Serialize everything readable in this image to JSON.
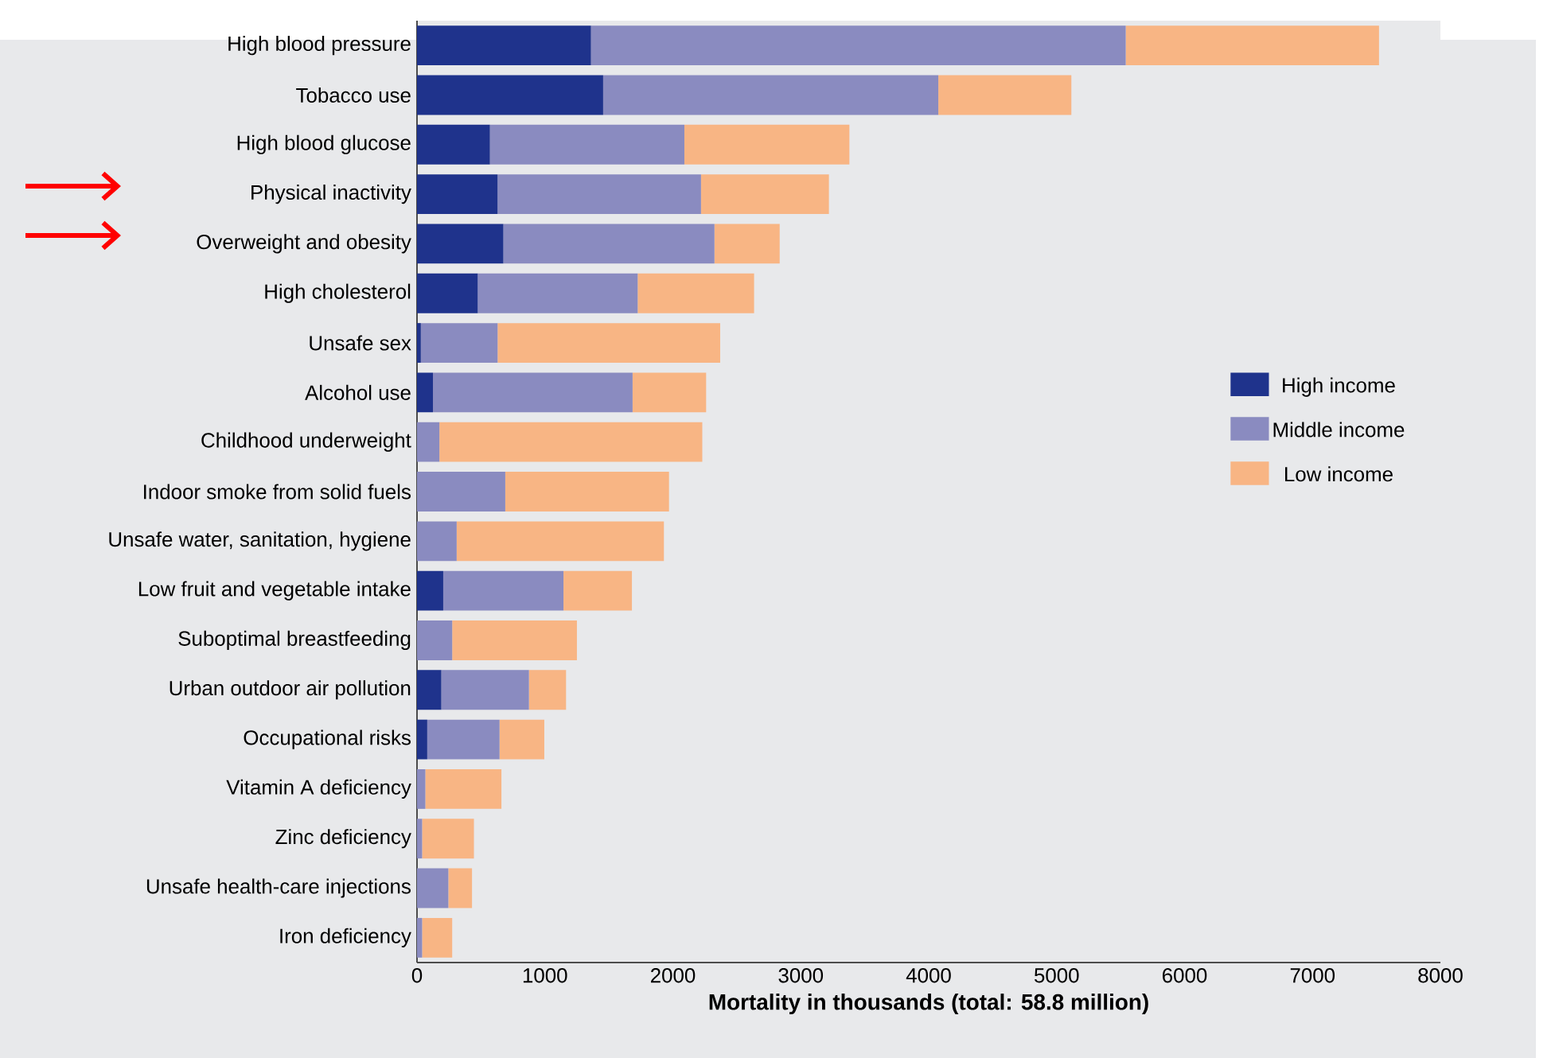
{
  "chart_data": {
    "type": "bar",
    "orientation": "horizontal",
    "stacked": true,
    "xlabel": "**Mortality in thousands (total: 58.8 million)**",
    "categories": [
      "High blood pressure",
      "Tobacco use",
      "High blood glucose",
      "Physical inactivity",
      "Overweight and obesity",
      "High cholesterol",
      "Unsafe sex",
      "Alcohol use",
      "Childhood underweight",
      "Indoor smoke from solid fuels",
      "Unsafe water, sanitation, hygiene",
      "Low fruit and vegetable intake",
      "Suboptimal breastfeeding",
      "Urban outdoor air pollution",
      "Occupational risks",
      "Vitamin A deficiency",
      "Zinc deficiency",
      "Unsafe health-care injections",
      "Iron deficiency"
    ],
    "series": [
      {
        "name": "High income",
        "color": "#1f338c",
        "values": [
          1360,
          1455,
          570,
          630,
          675,
          475,
          30,
          125,
          0,
          0,
          0,
          205,
          0,
          190,
          80,
          0,
          0,
          0,
          0
        ]
      },
      {
        "name": "Middle income",
        "color": "#8a8bc0",
        "values": [
          4180,
          2620,
          1520,
          1590,
          1650,
          1250,
          600,
          1560,
          175,
          690,
          310,
          940,
          275,
          685,
          565,
          65,
          40,
          245,
          40
        ]
      },
      {
        "name": "Low income",
        "color": "#f8b584",
        "values": [
          1980,
          1040,
          1290,
          1000,
          510,
          910,
          1740,
          575,
          2055,
          1280,
          1620,
          535,
          975,
          290,
          350,
          595,
          405,
          185,
          235
        ]
      }
    ],
    "xlim": [
      0,
      8000
    ],
    "xticks": [
      0,
      1000,
      2000,
      3000,
      4000,
      5000,
      6000,
      7000,
      8000
    ],
    "legend": "right"
  }
}
